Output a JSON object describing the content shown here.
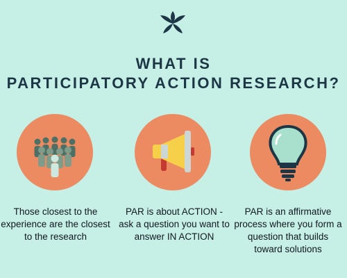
{
  "title": {
    "line1": "WHAT IS",
    "line2": "PARTICIPATORY ACTION RESEARCH?"
  },
  "colors": {
    "background": "#c6efe6",
    "circle": "#ec8b62",
    "title": "#1c3645"
  },
  "icons": [
    "leaf-logo-icon",
    "people-group-icon",
    "megaphone-icon",
    "lightbulb-icon"
  ],
  "cards": [
    {
      "text": "Those closest to the experience are the closest to the research"
    },
    {
      "text": "PAR is about ACTION - ask a question you want to answer IN ACTION"
    },
    {
      "text": "PAR is an affirmative process where you form a question that builds toward solutions"
    }
  ]
}
